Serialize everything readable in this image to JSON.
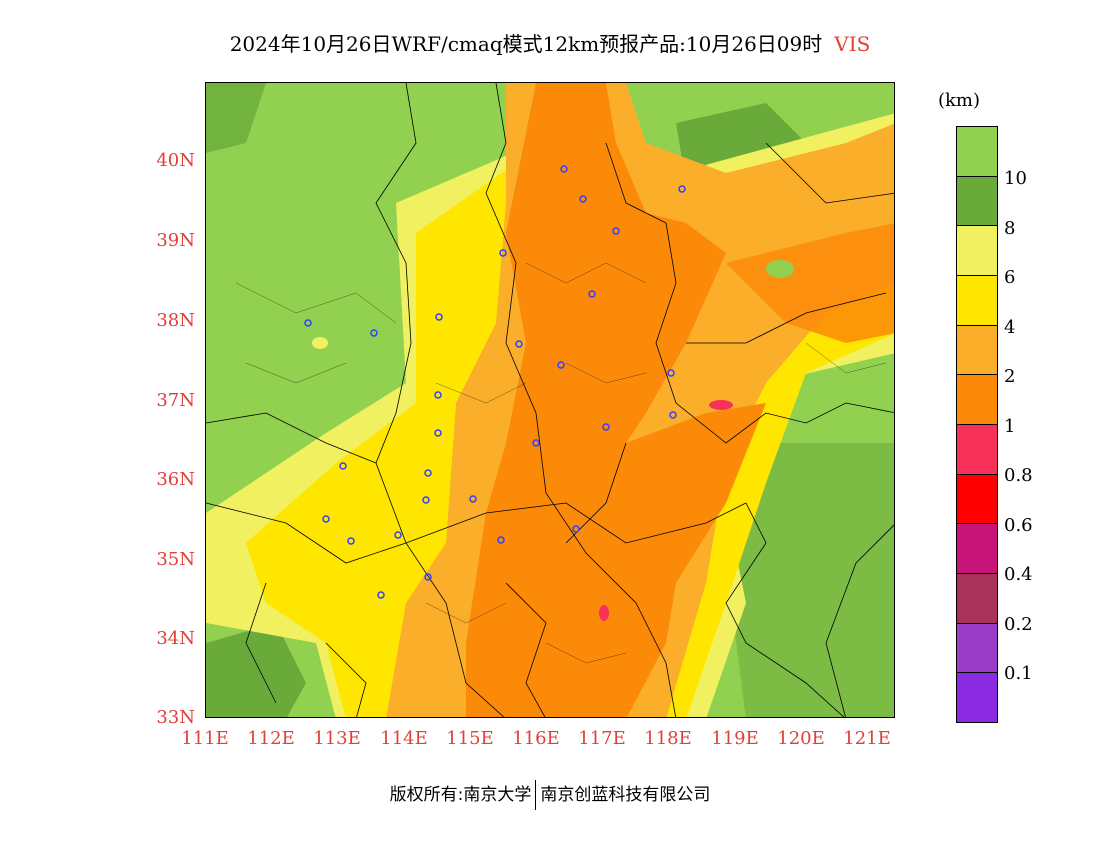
{
  "title": {
    "main": "2024年10月26日WRF/cmaq模式12km预报产品:10月26日09时",
    "variable": "VIS"
  },
  "axes": {
    "lat_labels": [
      "40N",
      "39N",
      "38N",
      "37N",
      "36N",
      "35N",
      "34N",
      "33N"
    ],
    "lon_labels": [
      "111E",
      "112E",
      "113E",
      "114E",
      "115E",
      "116E",
      "117E",
      "118E",
      "119E",
      "120E",
      "121E"
    ]
  },
  "legend": {
    "unit": "(km)",
    "labels": [
      "10",
      "8",
      "6",
      "4",
      "2",
      "1",
      "0.8",
      "0.6",
      "0.4",
      "0.2",
      "0.1"
    ],
    "colors": [
      "#92d050",
      "#6aaa3a",
      "#f0f060",
      "#ffe600",
      "#fbae2a",
      "#fb8a08",
      "#f6325a",
      "#ff0000",
      "#c81478",
      "#a8325a",
      "#9a3cc8",
      "#8a2be2"
    ]
  },
  "footer": {
    "copyright": "版权所有:南京大学",
    "company": "南京创蓝科技有限公司"
  }
}
